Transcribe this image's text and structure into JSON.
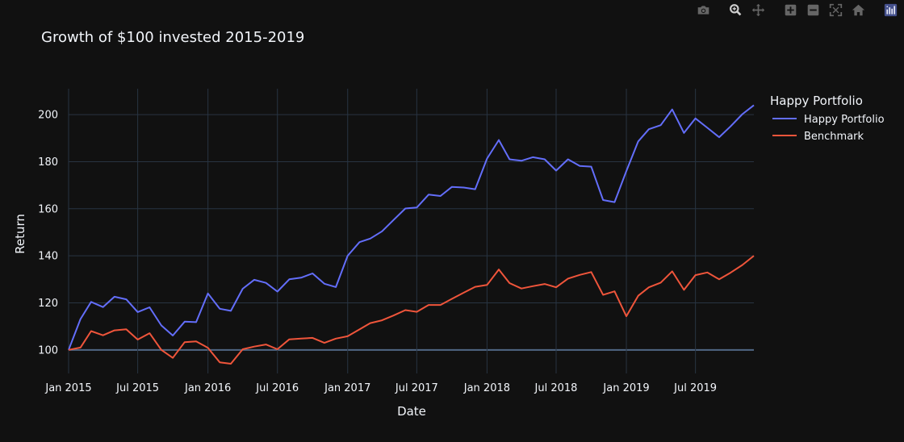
{
  "modebar": {
    "buttons": [
      {
        "name": "camera-icon"
      },
      {
        "name": "zoom-icon"
      },
      {
        "name": "pan-icon"
      },
      {
        "name": "zoom-in-icon"
      },
      {
        "name": "zoom-out-icon"
      },
      {
        "name": "autoscale-icon"
      },
      {
        "name": "home-icon"
      },
      {
        "name": "plotly-logo-icon"
      }
    ]
  },
  "chart_data": {
    "type": "line",
    "title": "Growth of $100 invested 2015-2019",
    "xlabel": "Date",
    "ylabel": "Return",
    "legend_title": "Happy Portfolio",
    "legend_position": "right",
    "grid": true,
    "xlim": [
      "2015-01-01",
      "2019-12-01"
    ],
    "ylim": [
      90,
      211
    ],
    "x_ticks": [
      "Jan 2015",
      "Jul 2015",
      "Jan 2016",
      "Jul 2016",
      "Jan 2017",
      "Jul 2017",
      "Jan 2018",
      "Jul 2018",
      "Jan 2019",
      "Jul 2019"
    ],
    "y_ticks": [
      100,
      120,
      140,
      160,
      180,
      200
    ],
    "x": [
      "2015-01",
      "2015-02",
      "2015-03",
      "2015-04",
      "2015-05",
      "2015-06",
      "2015-07",
      "2015-08",
      "2015-09",
      "2015-10",
      "2015-11",
      "2015-12",
      "2016-01",
      "2016-02",
      "2016-03",
      "2016-04",
      "2016-05",
      "2016-06",
      "2016-07",
      "2016-08",
      "2016-09",
      "2016-10",
      "2016-11",
      "2016-12",
      "2017-01",
      "2017-02",
      "2017-03",
      "2017-04",
      "2017-05",
      "2017-06",
      "2017-07",
      "2017-08",
      "2017-09",
      "2017-10",
      "2017-11",
      "2017-12",
      "2018-01",
      "2018-02",
      "2018-03",
      "2018-04",
      "2018-05",
      "2018-06",
      "2018-07",
      "2018-08",
      "2018-09",
      "2018-10",
      "2018-11",
      "2018-12",
      "2019-01",
      "2019-02",
      "2019-03",
      "2019-04",
      "2019-05",
      "2019-06",
      "2019-07",
      "2019-08",
      "2019-09",
      "2019-10",
      "2019-11",
      "2019-12"
    ],
    "series": [
      {
        "name": "Happy Portfolio",
        "color": "#636efa",
        "values": [
          100,
          113.1,
          120.4,
          118.2,
          122.6,
          121.5,
          116.1,
          118.1,
          110.4,
          106.1,
          112.0,
          111.8,
          124.0,
          117.5,
          116.6,
          126.0,
          129.8,
          128.5,
          124.8,
          130.0,
          130.7,
          132.5,
          128.1,
          126.7,
          140.0,
          145.8,
          147.3,
          150.4,
          155.2,
          160.1,
          160.5,
          166.0,
          165.4,
          169.3,
          169.0,
          168.3,
          181.3,
          189.2,
          181.0,
          180.4,
          181.9,
          181.0,
          176.2,
          181.0,
          178.2,
          177.9,
          163.7,
          162.8,
          176.0,
          188.6,
          193.8,
          195.5,
          202.2,
          192.2,
          198.4,
          194.4,
          190.4,
          195.0,
          200.2,
          204.0
        ]
      },
      {
        "name": "Benchmark",
        "color": "#ef553b",
        "values": [
          100,
          101.0,
          108.0,
          106.2,
          108.3,
          108.8,
          104.4,
          107.1,
          100.0,
          96.6,
          103.3,
          103.6,
          100.9,
          94.7,
          94.1,
          100.3,
          101.4,
          102.3,
          100.3,
          104.5,
          104.8,
          105.1,
          103.0,
          104.8,
          105.8,
          108.7,
          111.4,
          112.6,
          114.6,
          116.9,
          116.2,
          119.1,
          119.1,
          121.7,
          124.3,
          126.8,
          127.6,
          134.2,
          128.4,
          126.1,
          127.1,
          128.0,
          126.6,
          130.3,
          131.9,
          133.1,
          123.4,
          124.9,
          114.3,
          123.0,
          126.6,
          128.6,
          133.4,
          125.5,
          131.8,
          132.9,
          130.0,
          132.8,
          136.1,
          140.0
        ]
      }
    ]
  }
}
